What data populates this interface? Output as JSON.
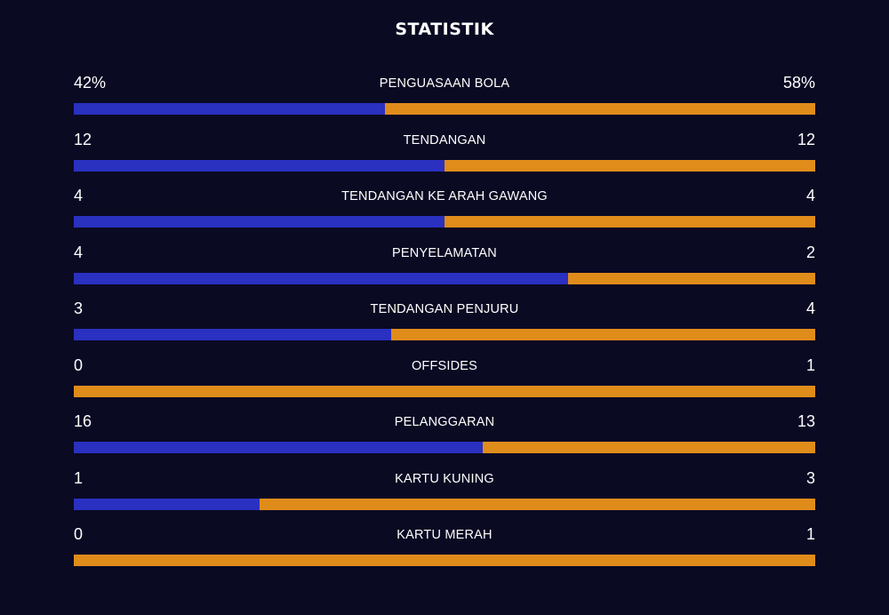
{
  "title": "STATISTIK",
  "colors": {
    "background": "#0a0a23",
    "home": "#2a30c0",
    "away": "#e08c1b",
    "text": "#ffffff"
  },
  "stats": [
    {
      "label": "PENGUASAAN BOLA",
      "home": "42%",
      "away": "58%",
      "home_value": 42,
      "away_value": 58
    },
    {
      "label": "TENDANGAN",
      "home": "12",
      "away": "12",
      "home_value": 12,
      "away_value": 12
    },
    {
      "label": "TENDANGAN KE ARAH GAWANG",
      "home": "4",
      "away": "4",
      "home_value": 4,
      "away_value": 4
    },
    {
      "label": "PENYELAMATAN",
      "home": "4",
      "away": "2",
      "home_value": 4,
      "away_value": 2
    },
    {
      "label": "TENDANGAN PENJURU",
      "home": "3",
      "away": "4",
      "home_value": 3,
      "away_value": 4
    },
    {
      "label": "OFFSIDES",
      "home": "0",
      "away": "1",
      "home_value": 0,
      "away_value": 1
    },
    {
      "label": "PELANGGARAN",
      "home": "16",
      "away": "13",
      "home_value": 16,
      "away_value": 13
    },
    {
      "label": "KARTU KUNING",
      "home": "1",
      "away": "3",
      "home_value": 1,
      "away_value": 3
    },
    {
      "label": "KARTU MERAH",
      "home": "0",
      "away": "1",
      "home_value": 0,
      "away_value": 1
    }
  ]
}
